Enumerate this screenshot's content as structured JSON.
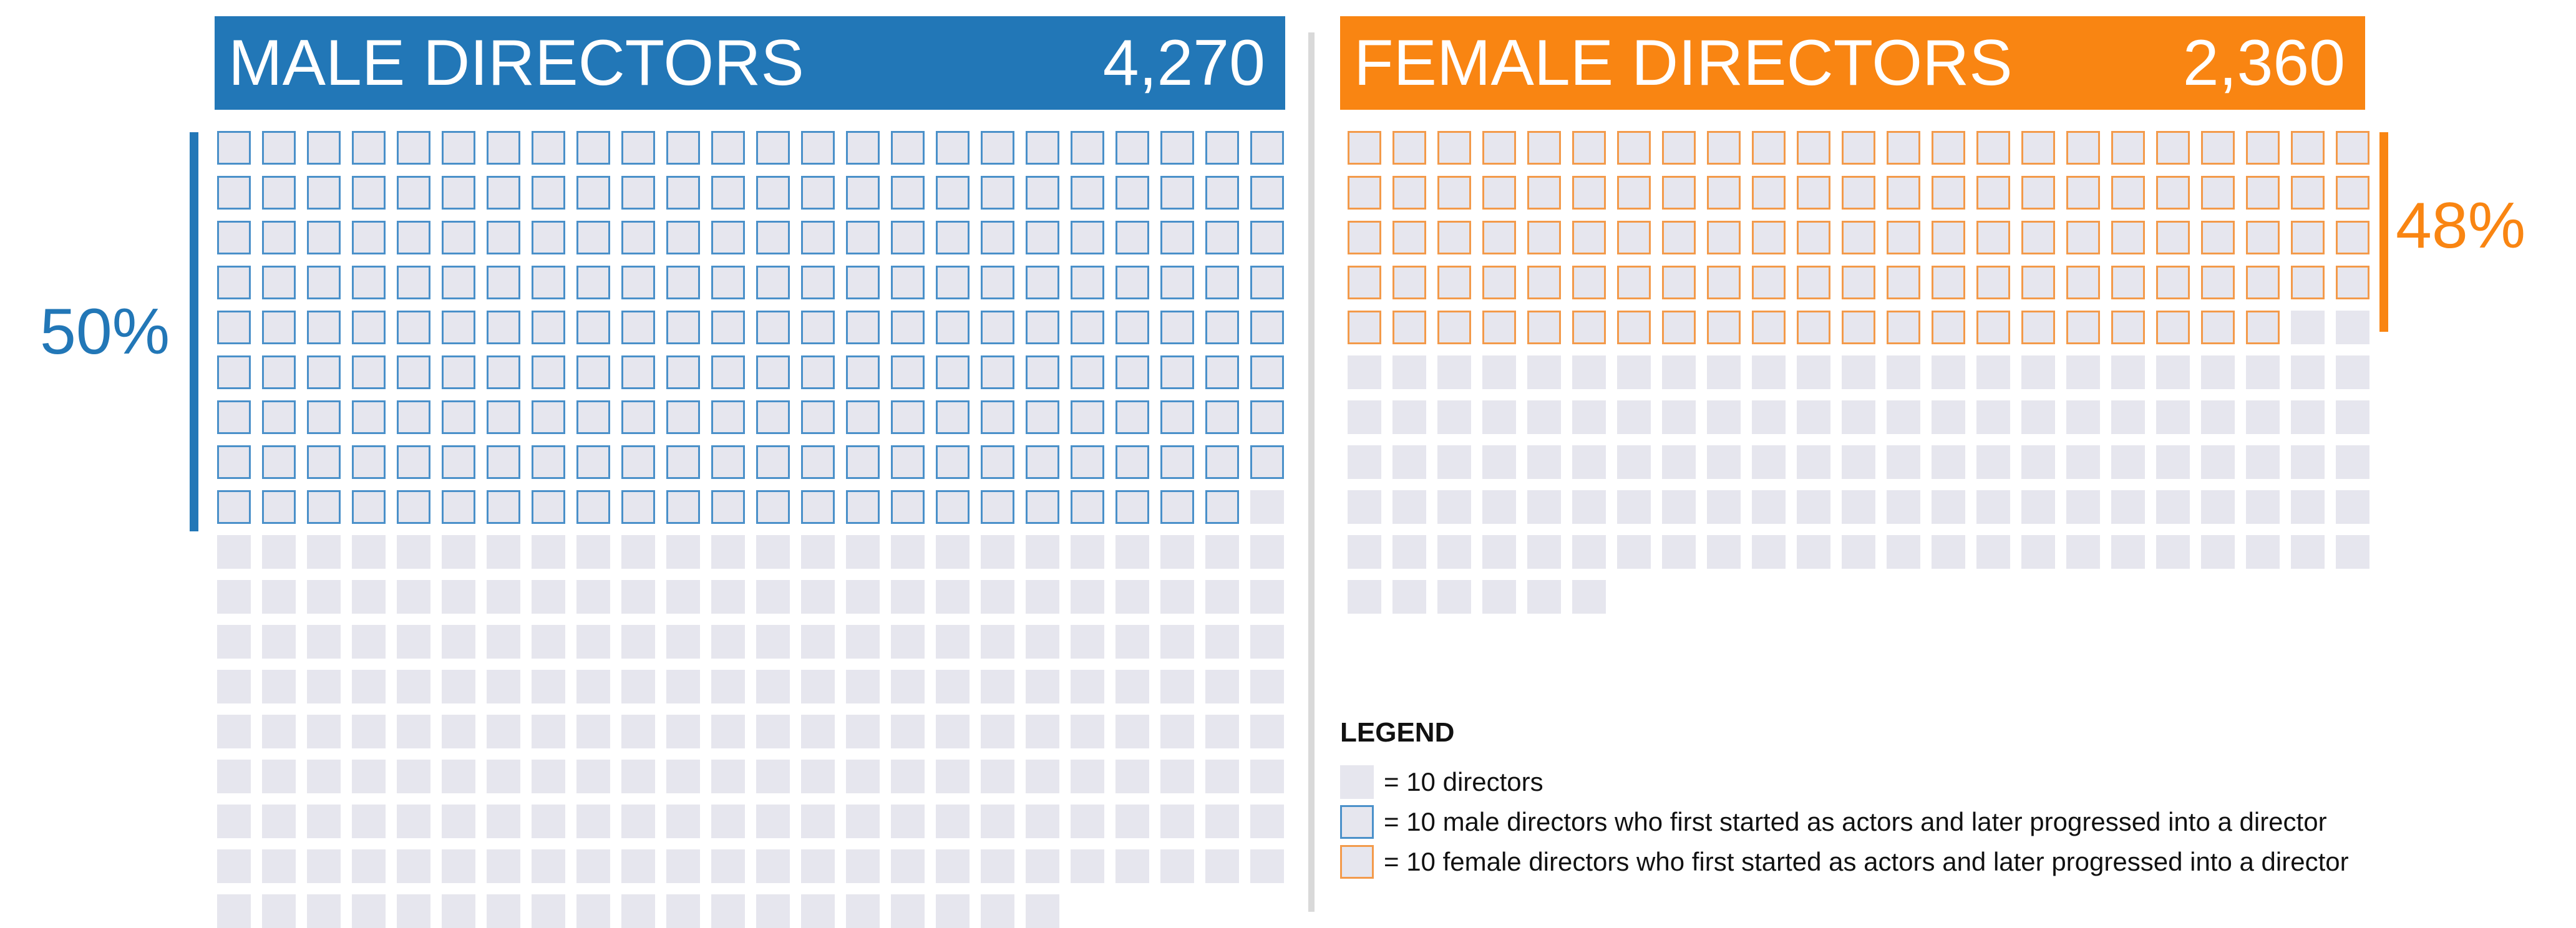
{
  "colors": {
    "male": "#2277b7",
    "female": "#f98512",
    "male_cell_border": "#4a90c9",
    "female_cell_border": "#f39a4a",
    "plain_cell": "#e6e6ee"
  },
  "male": {
    "title": "MALE DIRECTORS",
    "count_label": "4,270",
    "percent_label": "50%"
  },
  "female": {
    "title": "FEMALE DIRECTORS",
    "count_label": "2,360",
    "percent_label": "48%"
  },
  "legend": {
    "title": "LEGEND",
    "items": [
      {
        "swatch": "plain",
        "label": "= 10 directors"
      },
      {
        "swatch": "male",
        "label": "= 10 male directors who first started as actors and later progressed into a director"
      },
      {
        "swatch": "female",
        "label": "= 10 female directors who first started as actors and later progressed into a director"
      }
    ]
  },
  "chart_data": [
    {
      "type": "waffle",
      "title": "MALE DIRECTORS",
      "unit": "= 10 directors",
      "columns": 24,
      "total_directors": 4270,
      "total_cells": 427,
      "highlighted_cells": 215,
      "highlighted_label": "male directors who first started as actors and later progressed into a director",
      "percent": 50
    },
    {
      "type": "waffle",
      "title": "FEMALE DIRECTORS",
      "unit": "= 10 directors",
      "columns": 23,
      "total_directors": 2360,
      "total_cells": 236,
      "highlighted_cells": 113,
      "highlighted_label": "female directors who first started as actors and later progressed into a director",
      "percent": 48
    }
  ]
}
